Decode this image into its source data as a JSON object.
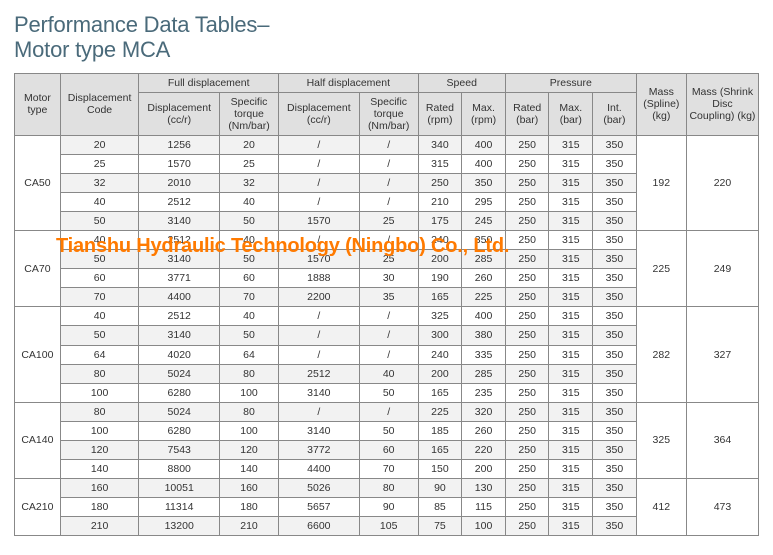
{
  "title_line1": "Performance Data Tables–",
  "title_line2": "Motor type MCA",
  "watermark": "Tianshu Hydraulic Technology (Ningbo) Co., Ltd.",
  "headers": {
    "motor_type": "Motor type",
    "disp_code": "Displacement Code",
    "full_disp": "Full displacement",
    "half_disp": "Half displacement",
    "speed": "Speed",
    "pressure": "Pressure",
    "mass_spline": "Mass (Spline) (kg)",
    "mass_shrink": "Mass (Shrink Disc Coupling) (kg)",
    "disp_ccr": "Displacement (cc/r)",
    "spec_torque": "Specific torque (Nm/bar)",
    "rated_rpm": "Rated (rpm)",
    "max_rpm": "Max. (rpm)",
    "rated_bar": "Rated (bar)",
    "max_bar": "Max. (bar)",
    "int_bar": "Int. (bar)"
  },
  "colors": {
    "title": "#4a6a7a",
    "header_bg": "#e0e0e0",
    "row_even": "#f2f2f2",
    "row_odd": "#ffffff",
    "border": "#888888",
    "watermark": "#ff7a00"
  },
  "groups": [
    {
      "motor": "CA50",
      "mass_spline": "192",
      "mass_shrink": "220",
      "rows": [
        {
          "code": "20",
          "fd": "1256",
          "fst": "20",
          "hd": "/",
          "hst": "/",
          "rr": "340",
          "mr": "400",
          "rb": "250",
          "mb": "315",
          "ib": "350"
        },
        {
          "code": "25",
          "fd": "1570",
          "fst": "25",
          "hd": "/",
          "hst": "/",
          "rr": "315",
          "mr": "400",
          "rb": "250",
          "mb": "315",
          "ib": "350"
        },
        {
          "code": "32",
          "fd": "2010",
          "fst": "32",
          "hd": "/",
          "hst": "/",
          "rr": "250",
          "mr": "350",
          "rb": "250",
          "mb": "315",
          "ib": "350"
        },
        {
          "code": "40",
          "fd": "2512",
          "fst": "40",
          "hd": "/",
          "hst": "/",
          "rr": "210",
          "mr": "295",
          "rb": "250",
          "mb": "315",
          "ib": "350"
        },
        {
          "code": "50",
          "fd": "3140",
          "fst": "50",
          "hd": "1570",
          "hst": "25",
          "rr": "175",
          "mr": "245",
          "rb": "250",
          "mb": "315",
          "ib": "350"
        }
      ]
    },
    {
      "motor": "CA70",
      "mass_spline": "225",
      "mass_shrink": "249",
      "rows": [
        {
          "code": "40",
          "fd": "2512",
          "fst": "40",
          "hd": "/",
          "hst": "/",
          "rr": "240",
          "mr": "350",
          "rb": "250",
          "mb": "315",
          "ib": "350"
        },
        {
          "code": "50",
          "fd": "3140",
          "fst": "50",
          "hd": "1570",
          "hst": "25",
          "rr": "200",
          "mr": "285",
          "rb": "250",
          "mb": "315",
          "ib": "350"
        },
        {
          "code": "60",
          "fd": "3771",
          "fst": "60",
          "hd": "1888",
          "hst": "30",
          "rr": "190",
          "mr": "260",
          "rb": "250",
          "mb": "315",
          "ib": "350"
        },
        {
          "code": "70",
          "fd": "4400",
          "fst": "70",
          "hd": "2200",
          "hst": "35",
          "rr": "165",
          "mr": "225",
          "rb": "250",
          "mb": "315",
          "ib": "350"
        }
      ]
    },
    {
      "motor": "CA100",
      "mass_spline": "282",
      "mass_shrink": "327",
      "rows": [
        {
          "code": "40",
          "fd": "2512",
          "fst": "40",
          "hd": "/",
          "hst": "/",
          "rr": "325",
          "mr": "400",
          "rb": "250",
          "mb": "315",
          "ib": "350"
        },
        {
          "code": "50",
          "fd": "3140",
          "fst": "50",
          "hd": "/",
          "hst": "/",
          "rr": "300",
          "mr": "380",
          "rb": "250",
          "mb": "315",
          "ib": "350"
        },
        {
          "code": "64",
          "fd": "4020",
          "fst": "64",
          "hd": "/",
          "hst": "/",
          "rr": "240",
          "mr": "335",
          "rb": "250",
          "mb": "315",
          "ib": "350"
        },
        {
          "code": "80",
          "fd": "5024",
          "fst": "80",
          "hd": "2512",
          "hst": "40",
          "rr": "200",
          "mr": "285",
          "rb": "250",
          "mb": "315",
          "ib": "350"
        },
        {
          "code": "100",
          "fd": "6280",
          "fst": "100",
          "hd": "3140",
          "hst": "50",
          "rr": "165",
          "mr": "235",
          "rb": "250",
          "mb": "315",
          "ib": "350"
        }
      ]
    },
    {
      "motor": "CA140",
      "mass_spline": "325",
      "mass_shrink": "364",
      "rows": [
        {
          "code": "80",
          "fd": "5024",
          "fst": "80",
          "hd": "/",
          "hst": "/",
          "rr": "225",
          "mr": "320",
          "rb": "250",
          "mb": "315",
          "ib": "350"
        },
        {
          "code": "100",
          "fd": "6280",
          "fst": "100",
          "hd": "3140",
          "hst": "50",
          "rr": "185",
          "mr": "260",
          "rb": "250",
          "mb": "315",
          "ib": "350"
        },
        {
          "code": "120",
          "fd": "7543",
          "fst": "120",
          "hd": "3772",
          "hst": "60",
          "rr": "165",
          "mr": "220",
          "rb": "250",
          "mb": "315",
          "ib": "350"
        },
        {
          "code": "140",
          "fd": "8800",
          "fst": "140",
          "hd": "4400",
          "hst": "70",
          "rr": "150",
          "mr": "200",
          "rb": "250",
          "mb": "315",
          "ib": "350"
        }
      ]
    },
    {
      "motor": "CA210",
      "mass_spline": "412",
      "mass_shrink": "473",
      "rows": [
        {
          "code": "160",
          "fd": "10051",
          "fst": "160",
          "hd": "5026",
          "hst": "80",
          "rr": "90",
          "mr": "130",
          "rb": "250",
          "mb": "315",
          "ib": "350"
        },
        {
          "code": "180",
          "fd": "11314",
          "fst": "180",
          "hd": "5657",
          "hst": "90",
          "rr": "85",
          "mr": "115",
          "rb": "250",
          "mb": "315",
          "ib": "350"
        },
        {
          "code": "210",
          "fd": "13200",
          "fst": "210",
          "hd": "6600",
          "hst": "105",
          "rr": "75",
          "mr": "100",
          "rb": "250",
          "mb": "315",
          "ib": "350"
        }
      ]
    }
  ]
}
